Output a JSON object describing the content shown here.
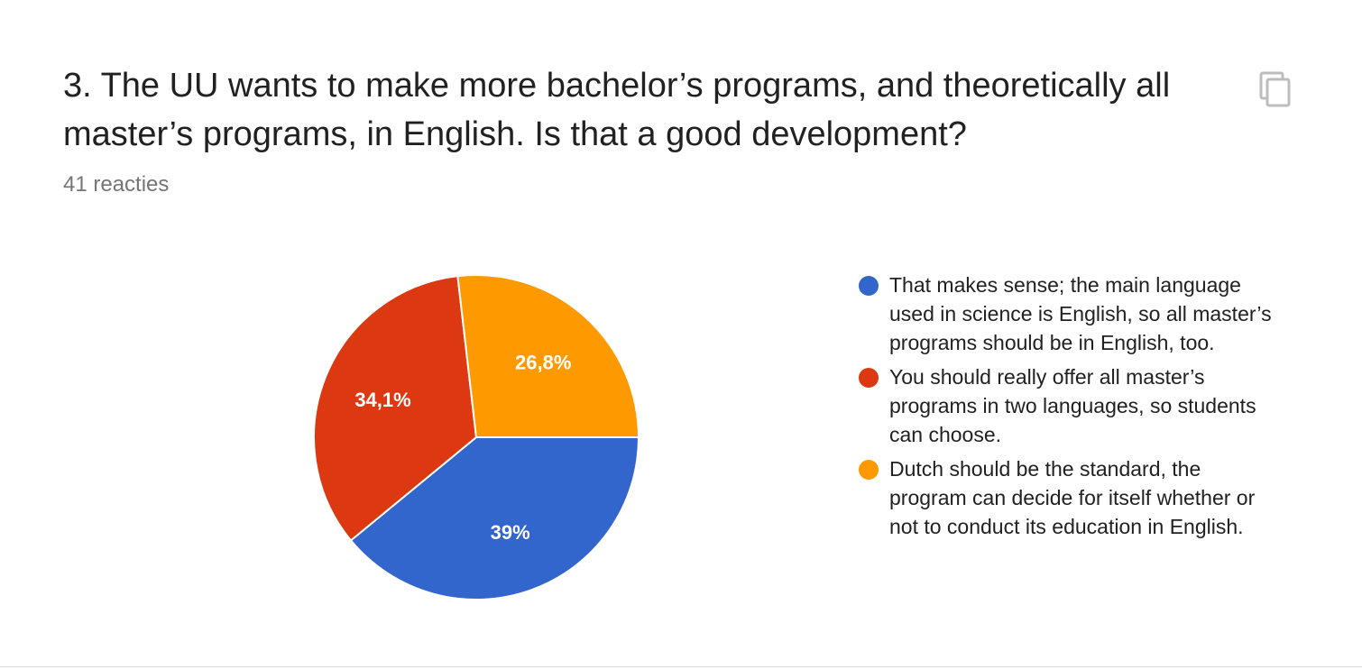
{
  "question": {
    "title": "3. The UU wants to make more bachelor’s programs, and theoretically all master’s programs, in English. Is that a good development?",
    "response_count": "41 reacties",
    "copy_icon": "copy-icon"
  },
  "chart_data": {
    "type": "pie",
    "title": "",
    "slices": [
      {
        "label": "That makes sense; the main language used in science is English, so all master’s programs should be in English, too.",
        "value": 39,
        "display": "39%",
        "color": "#3366cc"
      },
      {
        "label": "You should really offer all master’s programs in two languages, so students can choose.",
        "value": 34.1,
        "display": "34,1%",
        "color": "#dc3912"
      },
      {
        "label": "Dutch should be the standard, the program can decide for itself whether or not to conduct its education in English.",
        "value": 26.8,
        "display": "26,8%",
        "color": "#ff9900"
      }
    ],
    "legend_position": "right"
  }
}
